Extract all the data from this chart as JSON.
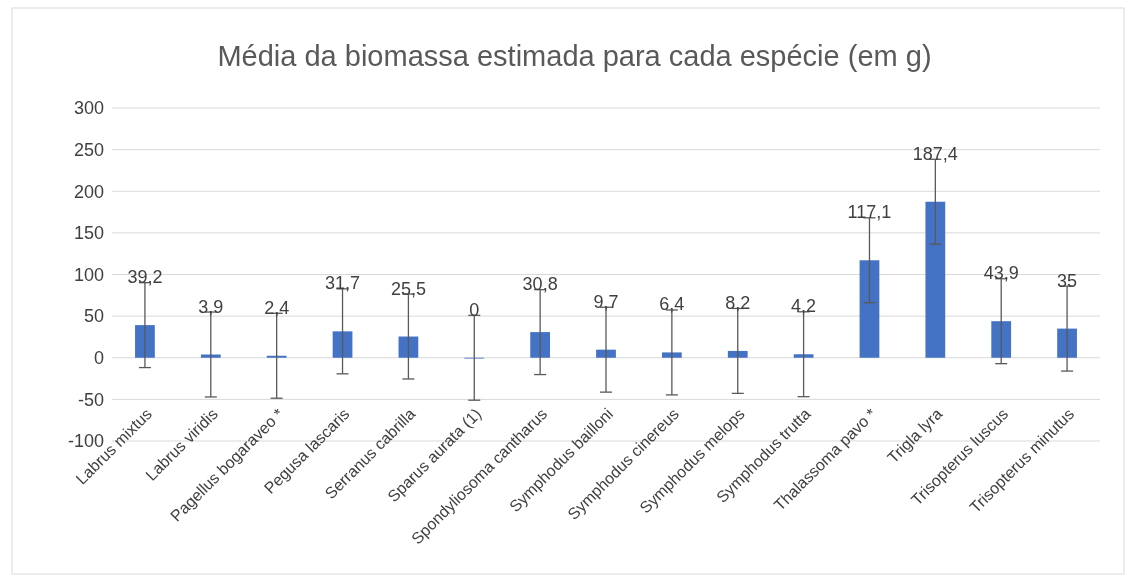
{
  "chart_data": {
    "type": "bar",
    "title": "Média da biomassa estimada para cada espécie (em g)",
    "categories": [
      "Labrus mixtus",
      "Labrus viridis",
      "Pagellus bogaraveo *",
      "Pegusa lascaris",
      "Serranus cabrilla",
      "Sparus aurata (1)",
      "Spondyliosoma cantharus",
      "Symphodus bailloni",
      "Symphodus cinereus",
      "Symphodus melops",
      "Symphodus trutta",
      "Thalassoma pavo *",
      "Trigla lyra",
      "Trisopterus luscus",
      "Trisopterus minutus"
    ],
    "values": [
      39.2,
      3.9,
      2.4,
      31.7,
      25.5,
      0,
      30.8,
      9.7,
      6.4,
      8.2,
      4.2,
      117.1,
      187.4,
      43.9,
      35
    ],
    "value_labels": [
      "39,2",
      "3,9",
      "2,4",
      "31,7",
      "25,5",
      "0",
      "30,8",
      "9,7",
      "6,4",
      "8,2",
      "4,2",
      "117,1",
      "187,4",
      "43,9",
      "35"
    ],
    "errors": [
      51,
      51,
      51,
      51,
      51,
      51,
      51,
      51,
      51,
      51,
      51,
      51,
      51,
      51,
      51
    ],
    "color": "#4472c4",
    "ylim": [
      -100,
      300
    ],
    "yticks": [
      -100,
      -50,
      0,
      50,
      100,
      150,
      200,
      250,
      300
    ],
    "grid": "y"
  }
}
